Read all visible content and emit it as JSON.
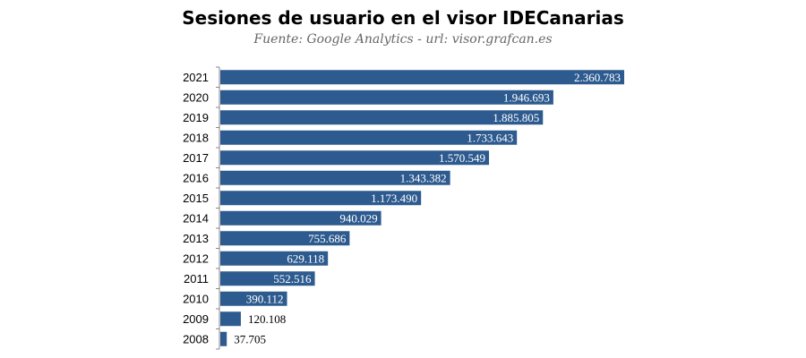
{
  "chart_data": {
    "type": "bar",
    "orientation": "horizontal",
    "title": "Sesiones de usuario en el visor IDECanarias",
    "subtitle": "Fuente: Google Analytics - url: visor.grafcan.es",
    "categories": [
      "2021",
      "2020",
      "2019",
      "2018",
      "2017",
      "2016",
      "2015",
      "2014",
      "2013",
      "2012",
      "2011",
      "2010",
      "2009",
      "2008"
    ],
    "values": [
      2360783,
      1946693,
      1885805,
      1733643,
      1570549,
      1343382,
      1173490,
      940029,
      755686,
      629118,
      552516,
      390112,
      120108,
      37705
    ],
    "value_labels": [
      "2.360.783",
      "1.946.693",
      "1.885.805",
      "1.733.643",
      "1.570.549",
      "1.343.382",
      "1.173.490",
      "940.029",
      "755.686",
      "629.118",
      "552.516",
      "390.112",
      "120.108",
      "37.705"
    ],
    "xlim": [
      0,
      2360783
    ],
    "grid": false,
    "legend": "none",
    "bar_color": "#2E5B8F",
    "label_inside_color": "#ffffff",
    "label_outside_color": "#000000"
  }
}
